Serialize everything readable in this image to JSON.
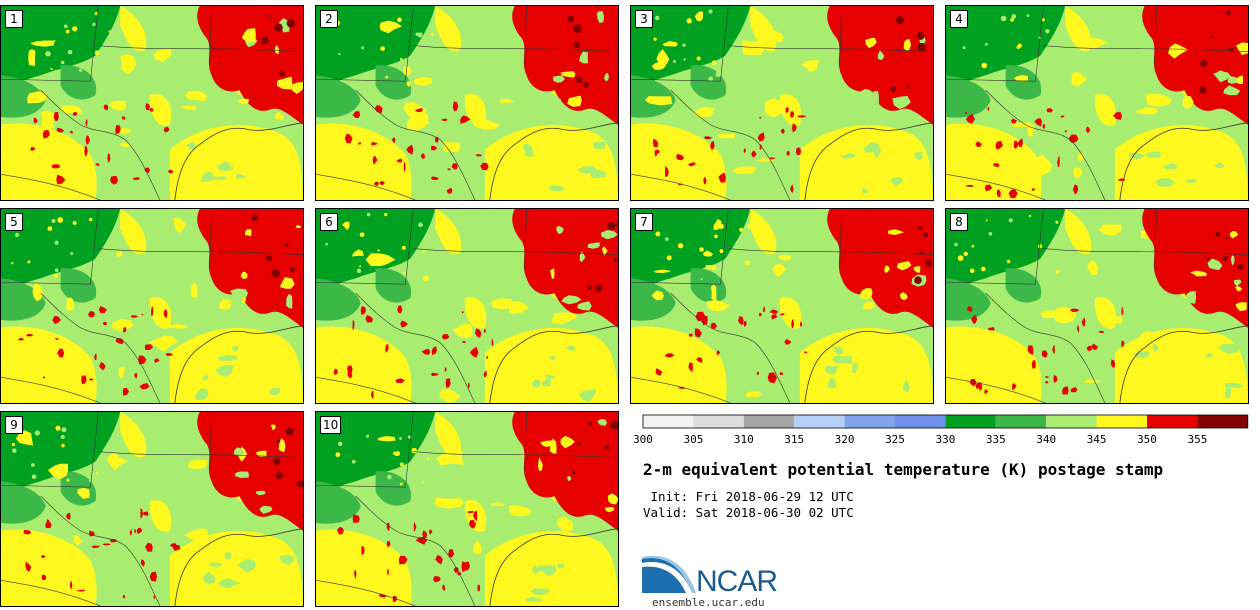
{
  "members": [
    {
      "label": "1",
      "seed": 11
    },
    {
      "label": "2",
      "seed": 23
    },
    {
      "label": "3",
      "seed": 37
    },
    {
      "label": "4",
      "seed": 41
    },
    {
      "label": "5",
      "seed": 53
    },
    {
      "label": "6",
      "seed": 67
    },
    {
      "label": "7",
      "seed": 71
    },
    {
      "label": "8",
      "seed": 83
    },
    {
      "label": "9",
      "seed": 97
    },
    {
      "label": "10",
      "seed": 103
    }
  ],
  "colorbar": {
    "ticks": [
      "300",
      "305",
      "310",
      "315",
      "320",
      "325",
      "330",
      "335",
      "340",
      "345",
      "350",
      "355"
    ],
    "colors": [
      "#f2f2f2",
      "#dcdcdc",
      "#a6a6a6",
      "#b8cff5",
      "#7fa3ef",
      "#6f8fe8",
      "#00a020",
      "#3cb848",
      "#a8ec70",
      "#fff81e",
      "#e60000",
      "#800000"
    ]
  },
  "title": "2-m equivalent potential temperature (K) postage stamp",
  "init": " Init: Fri 2018-06-29 12 UTC",
  "valid": "Valid: Sat 2018-06-30 02 UTC",
  "logo": {
    "text": "NCAR",
    "url": "ensemble.ucar.edu"
  }
}
